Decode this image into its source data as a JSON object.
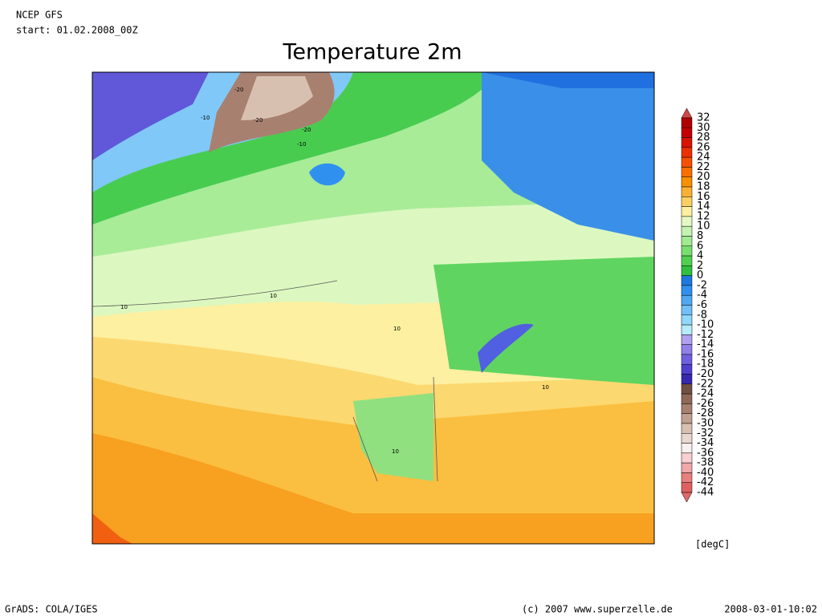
{
  "header": {
    "model": "NCEP GFS",
    "start": "start: 01.02.2008_00Z"
  },
  "title": "Temperature 2m",
  "map": {
    "contour_labels": [
      "-20",
      "-10",
      "-20",
      "-20",
      "-10",
      "10",
      "10",
      "10",
      "10",
      "10"
    ]
  },
  "legend": {
    "levels": [
      "32",
      "30",
      "28",
      "26",
      "24",
      "22",
      "20",
      "18",
      "16",
      "14",
      "12",
      "10",
      "8",
      "6",
      "4",
      "2",
      "0",
      "-2",
      "-4",
      "-6",
      "-8",
      "-10",
      "-12",
      "-14",
      "-16",
      "-18",
      "-20",
      "-22",
      "-24",
      "-26",
      "-28",
      "-30",
      "-32",
      "-34",
      "-36",
      "-38",
      "-40",
      "-42",
      "-44"
    ],
    "colors": [
      "#d04848",
      "#b00000",
      "#c40000",
      "#d81400",
      "#ec3000",
      "#f65000",
      "#fa7000",
      "#f89000",
      "#fab030",
      "#fcd060",
      "#fdf0a0",
      "#e4f8c4",
      "#c4f2b0",
      "#a0ea90",
      "#78de70",
      "#50d050",
      "#30c040",
      "#1e78e0",
      "#3090f0",
      "#50a8f0",
      "#70c0f8",
      "#90d8fc",
      "#b4ecfc",
      "#b0a0f0",
      "#9080e8",
      "#7060e0",
      "#5040d0",
      "#3828b0",
      "#705040",
      "#906858",
      "#a88070",
      "#c0a090",
      "#d8c0b0",
      "#e8d8d0",
      "#f8f0f0",
      "#f8d0d0",
      "#f0a8a8",
      "#e88080",
      "#e06060",
      "#e06868"
    ],
    "unit": "[degC]"
  },
  "footer": {
    "left": "GrADS: COLA/IGES",
    "center": "(c) 2007 www.superzelle.de",
    "right": "2008-03-01-10:02"
  }
}
